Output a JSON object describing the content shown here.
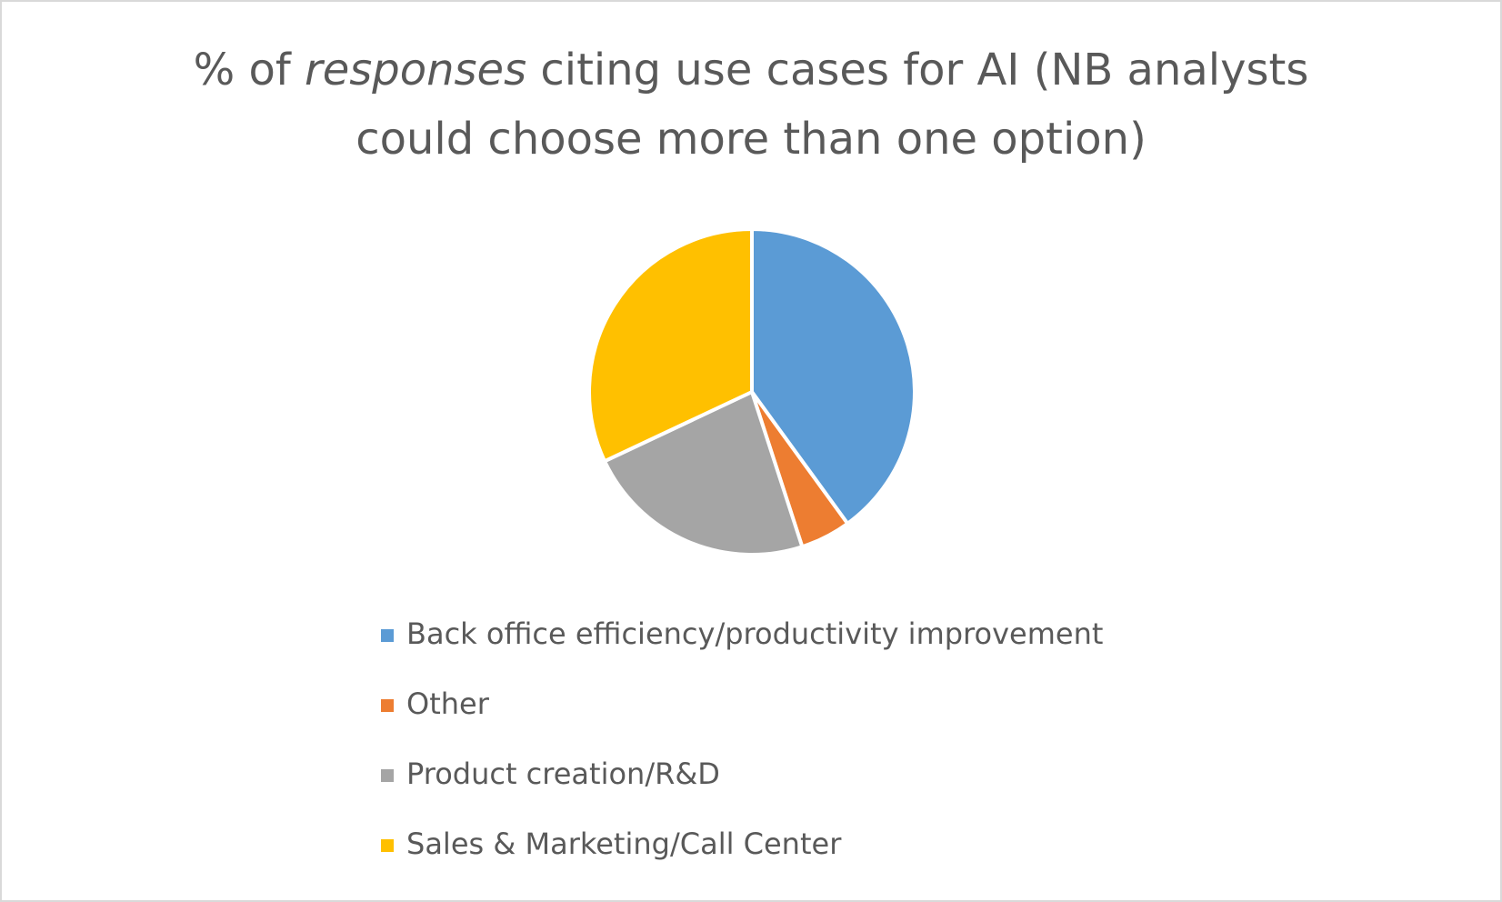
{
  "chart_data": {
    "type": "pie",
    "title": [
      "% of ",
      "responses",
      " citing use cases for AI (NB analysts",
      "could choose more than one option)"
    ],
    "title_italic": [
      false,
      true,
      false,
      false
    ],
    "categories": [
      "Back office efficiency/productivity improvement",
      "Other",
      "Product creation/R&D",
      "Sales & Marketing/Call Center"
    ],
    "values": [
      40,
      5,
      23,
      32
    ],
    "colors": [
      "#5b9bd5",
      "#ed7d31",
      "#a5a5a5",
      "#ffc000"
    ],
    "legend": "bottom"
  }
}
